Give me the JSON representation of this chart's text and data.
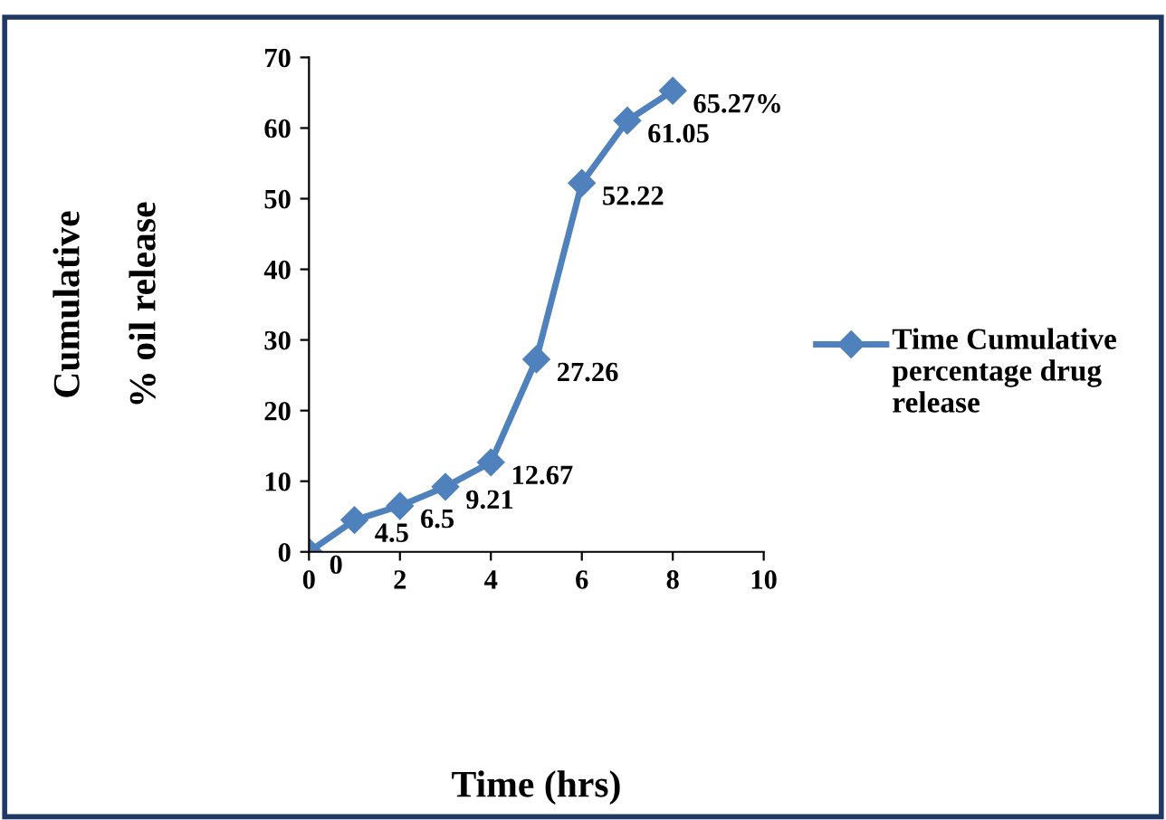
{
  "chart_data": {
    "type": "line",
    "xlabel": "Time (hrs)",
    "ylabel": "Cumulative\n% oil release",
    "x": [
      0,
      1,
      2,
      3,
      4,
      5,
      6,
      7,
      8
    ],
    "series": [
      {
        "name": "Time Cumulative percentage drug release",
        "color": "#4f81bd",
        "values": [
          0,
          4.5,
          6.5,
          9.21,
          12.67,
          27.26,
          52.22,
          61.05,
          65.27
        ],
        "value_labels": [
          "0",
          "4.5",
          "6.5",
          "9.21",
          "12.67",
          "27.26",
          "52.22",
          "61.05",
          "65.27%"
        ]
      }
    ],
    "xlim": [
      0,
      10
    ],
    "xticks": [
      0,
      2,
      4,
      6,
      8,
      10
    ],
    "ylim": [
      0,
      70
    ],
    "yticks": [
      0,
      10,
      20,
      30,
      40,
      50,
      60,
      70
    ],
    "marker": "diamond",
    "line_style": "solid",
    "grid": false,
    "legend": "right"
  }
}
